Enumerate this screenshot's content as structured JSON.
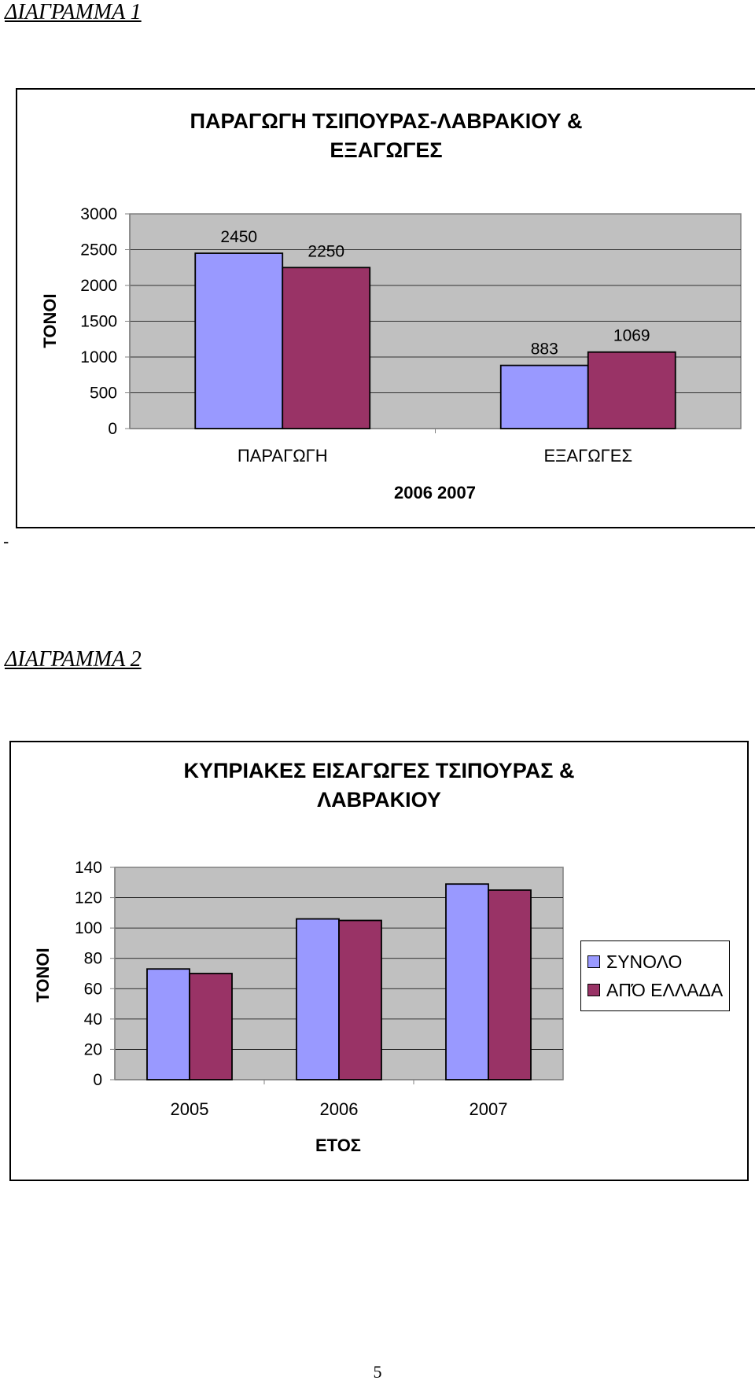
{
  "diagram1": {
    "heading": "ΔΙΑΓΡΑΜΜΑ 1",
    "title_line1": "ΠΑΡΑΓΩΓΗ ΤΣΙΠΟΥΡΑΣ-ΛΑΒΡΑΚΙΟΥ &",
    "title_line2": "ΕΞΑΓΩΓΕΣ"
  },
  "diagram2": {
    "heading": "ΔΙΑΓΡΑΜΜΑ 2",
    "title_line1": "ΚΥΠΡΙΑΚΕΣ ΕΙΣΑΓΩΓΕΣ ΤΣΙΠΟΥΡΑΣ &",
    "title_line2": "ΛΑΒΡΑΚΙΟΥ"
  },
  "page": {
    "dash": "-",
    "page_number": "5"
  },
  "colors": {
    "series1": "#9999FF",
    "series2": "#993366",
    "plot_bg": "#C0C0C0"
  },
  "chart_data": [
    {
      "type": "bar",
      "title": "ΠΑΡΑΓΩΓΗ ΤΣΙΠΟΥΡΑΣ-ΛΑΒΡΑΚΙΟΥ & ΕΞΑΓΩΓΕΣ",
      "categories": [
        "ΠΑΡΑΓΩΓΗ",
        "ΕΞΑΓΩΓΕΣ"
      ],
      "series": [
        {
          "name": "2006",
          "values": [
            2450,
            883
          ]
        },
        {
          "name": "2007",
          "values": [
            2250,
            1069
          ]
        }
      ],
      "xlabel": "2006 2007",
      "ylabel": "ΤΟΝΟΙ",
      "ylim": [
        0,
        3000
      ],
      "yticks": [
        0,
        500,
        1000,
        1500,
        2000,
        2500,
        3000
      ],
      "grid": true,
      "data_labels": true,
      "legend": "none"
    },
    {
      "type": "bar",
      "title": "ΚΥΠΡΙΑΚΕΣ ΕΙΣΑΓΩΓΕΣ ΤΣΙΠΟΥΡΑΣ & ΛΑΒΡΑΚΙΟΥ",
      "categories": [
        "2005",
        "2006",
        "2007"
      ],
      "series": [
        {
          "name": "ΣΥΝΟΛΟ",
          "values": [
            73,
            106,
            129
          ]
        },
        {
          "name": "ΑΠΌ ΕΛΛΑΔΑ",
          "values": [
            70,
            105,
            125
          ]
        }
      ],
      "xlabel": "ΕΤΟΣ",
      "ylabel": "ΤΟΝΟΙ",
      "ylim": [
        0,
        140
      ],
      "yticks": [
        0,
        20,
        40,
        60,
        80,
        100,
        120,
        140
      ],
      "grid": true,
      "data_labels": false,
      "legend": "right"
    }
  ]
}
